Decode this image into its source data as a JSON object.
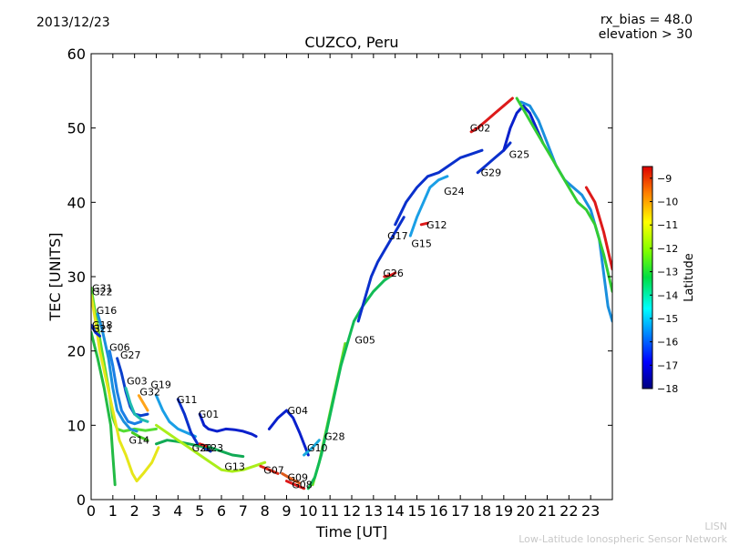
{
  "header": {
    "date": "2013/12/23",
    "rx_bias": "rx_bias = 48.0",
    "elevation": "elevation > 30"
  },
  "footer": {
    "org_short": "LISN",
    "org_long": "Low-Latitude Ionospheric Sensor Network"
  },
  "chart_data": {
    "type": "scatter",
    "title": "CUZCO, Peru",
    "xlabel": "Time [UT]",
    "ylabel": "TEC [UNITS]",
    "xlim": [
      0,
      24
    ],
    "ylim": [
      0,
      60
    ],
    "xticks": [
      "0",
      "1",
      "2",
      "3",
      "4",
      "5",
      "6",
      "7",
      "8",
      "9",
      "10",
      "11",
      "12",
      "13",
      "14",
      "15",
      "16",
      "17",
      "18",
      "19",
      "20",
      "21",
      "22",
      "23"
    ],
    "yticks": [
      "0",
      "10",
      "20",
      "30",
      "40",
      "50",
      "60"
    ],
    "colorbar": {
      "label": "Latitude",
      "range": [
        -18,
        -8.5
      ],
      "ticks": [
        "−9",
        "−10",
        "−11",
        "−12",
        "−13",
        "−14",
        "−15",
        "−16",
        "−17",
        "−18"
      ],
      "colormap": "jet"
    },
    "grid": false,
    "series": [
      {
        "name": "G31",
        "label_at": [
          0.0,
          28.5
        ],
        "color": "#55dd33",
        "points": [
          [
            0.0,
            28.5
          ],
          [
            0.2,
            25
          ],
          [
            0.5,
            20
          ],
          [
            0.8,
            15
          ],
          [
            1.0,
            11
          ],
          [
            1.2,
            9.5
          ],
          [
            1.5,
            9.2
          ],
          [
            2.0,
            9.5
          ],
          [
            2.5,
            9.3
          ],
          [
            3.0,
            9.5
          ]
        ]
      },
      {
        "name": "G22",
        "label_at": [
          0.0,
          28.0
        ],
        "color": "#e6e61a",
        "points": [
          [
            0.0,
            27.5
          ],
          [
            0.2,
            24
          ],
          [
            0.4,
            20
          ],
          [
            0.7,
            16
          ],
          [
            1.0,
            12
          ],
          [
            1.3,
            8
          ],
          [
            1.6,
            6
          ],
          [
            1.9,
            3.5
          ],
          [
            2.1,
            2.5
          ],
          [
            2.4,
            3.5
          ],
          [
            2.8,
            5
          ],
          [
            3.1,
            7
          ]
        ]
      },
      {
        "name": "G16",
        "label_at": [
          0.2,
          25.5
        ],
        "color": "#1a8fdd",
        "points": [
          [
            0.3,
            25
          ],
          [
            0.5,
            23
          ],
          [
            0.8,
            19
          ],
          [
            1.0,
            15
          ],
          [
            1.2,
            12
          ],
          [
            1.5,
            10.5
          ],
          [
            1.8,
            9.5
          ],
          [
            2.1,
            9.2
          ]
        ]
      },
      {
        "name": "G18",
        "label_at": [
          0.0,
          23.5
        ],
        "color": "#0a2acc",
        "points": [
          [
            0.0,
            23.5
          ],
          [
            0.2,
            22.5
          ],
          [
            0.4,
            22.0
          ]
        ]
      },
      {
        "name": "G21",
        "label_at": [
          0.0,
          23.0
        ],
        "color": "#22bb44",
        "points": [
          [
            0.0,
            22.5
          ],
          [
            0.3,
            19
          ],
          [
            0.6,
            15
          ],
          [
            0.9,
            10
          ],
          [
            1.0,
            6
          ],
          [
            1.1,
            2
          ]
        ]
      },
      {
        "name": "G06",
        "label_at": [
          0.8,
          20.5
        ],
        "color": "#1a7fe6",
        "points": [
          [
            0.85,
            20
          ],
          [
            1.0,
            18
          ],
          [
            1.2,
            14.5
          ],
          [
            1.4,
            12
          ],
          [
            1.7,
            10.5
          ],
          [
            2.0,
            10.2
          ],
          [
            2.3,
            10.5
          ]
        ]
      },
      {
        "name": "G27",
        "label_at": [
          1.3,
          19.5
        ],
        "color": "#0a40cc",
        "points": [
          [
            1.2,
            19
          ],
          [
            1.4,
            17
          ],
          [
            1.6,
            14.5
          ],
          [
            1.8,
            12.5
          ],
          [
            2.0,
            11.5
          ],
          [
            2.3,
            11.3
          ],
          [
            2.6,
            11.5
          ]
        ]
      },
      {
        "name": "G03",
        "label_at": [
          1.6,
          16.0
        ],
        "color": "#1fbcb0",
        "points": [
          [
            1.6,
            15
          ],
          [
            1.8,
            13
          ],
          [
            2.0,
            11.5
          ],
          [
            2.3,
            10.8
          ],
          [
            2.6,
            10.5
          ]
        ]
      },
      {
        "name": "G32",
        "label_at": [
          2.2,
          14.5
        ],
        "color": "#ffa41a",
        "points": [
          [
            2.2,
            14
          ],
          [
            2.4,
            13
          ],
          [
            2.6,
            12
          ]
        ]
      },
      {
        "name": "G19",
        "label_at": [
          2.7,
          15.5
        ],
        "color": "#1a9fe6",
        "points": [
          [
            3.0,
            14
          ],
          [
            3.3,
            12
          ],
          [
            3.6,
            10.5
          ],
          [
            4.0,
            9.5
          ],
          [
            4.4,
            9
          ],
          [
            4.8,
            8.5
          ]
        ]
      },
      {
        "name": "G14",
        "label_at": [
          1.7,
          8.0
        ],
        "color": "#44cc22",
        "points": [
          [
            1.9,
            9
          ],
          [
            2.2,
            8.5
          ],
          [
            2.6,
            8
          ]
        ]
      },
      {
        "name": "G11",
        "label_at": [
          3.9,
          13.5
        ],
        "color": "#0a30cc",
        "points": [
          [
            4.0,
            13.5
          ],
          [
            4.3,
            11.5
          ],
          [
            4.6,
            9
          ],
          [
            4.9,
            7.5
          ],
          [
            5.2,
            7
          ],
          [
            5.5,
            6.5
          ]
        ]
      },
      {
        "name": "G01",
        "label_at": [
          4.9,
          11.5
        ],
        "color": "#0a20cc",
        "points": [
          [
            5.0,
            11.5
          ],
          [
            5.2,
            10
          ],
          [
            5.4,
            9.5
          ],
          [
            5.8,
            9.2
          ],
          [
            6.2,
            9.5
          ],
          [
            6.6,
            9.4
          ],
          [
            7.0,
            9.2
          ],
          [
            7.4,
            8.8
          ],
          [
            7.6,
            8.5
          ]
        ]
      },
      {
        "name": "G20",
        "label_at": [
          4.6,
          7.0
        ],
        "color": "#11aa55",
        "points": [
          [
            3.0,
            7.5
          ],
          [
            3.5,
            8
          ],
          [
            4.0,
            7.8
          ],
          [
            4.5,
            7.5
          ],
          [
            5.0,
            7.2
          ],
          [
            5.5,
            7
          ],
          [
            6.0,
            6.5
          ],
          [
            6.5,
            6
          ],
          [
            7.0,
            5.8
          ]
        ]
      },
      {
        "name": "G23",
        "label_at": [
          5.1,
          7.0
        ],
        "color": "#dd1a1a",
        "points": [
          [
            5.0,
            7.5
          ],
          [
            5.3,
            7.2
          ]
        ]
      },
      {
        "name": "G13",
        "label_at": [
          6.1,
          4.5
        ],
        "color": "#aaee1a",
        "points": [
          [
            3.0,
            10
          ],
          [
            3.5,
            9
          ],
          [
            4.0,
            8
          ],
          [
            4.5,
            7
          ],
          [
            5.0,
            6
          ],
          [
            5.5,
            5
          ],
          [
            6.0,
            4
          ],
          [
            6.5,
            3.8
          ],
          [
            7.0,
            4
          ],
          [
            7.5,
            4.5
          ],
          [
            8.0,
            5
          ]
        ]
      },
      {
        "name": "G07",
        "label_at": [
          7.9,
          4.0
        ],
        "color": "#dd2a1a",
        "points": [
          [
            7.8,
            4.5
          ],
          [
            8.2,
            4
          ],
          [
            8.6,
            3.5
          ]
        ]
      },
      {
        "name": "G04",
        "label_at": [
          9.0,
          12.0
        ],
        "color": "#0a20cc",
        "points": [
          [
            8.2,
            9.5
          ],
          [
            8.6,
            11
          ],
          [
            9.0,
            12
          ],
          [
            9.3,
            11
          ],
          [
            9.6,
            9
          ],
          [
            10.0,
            6
          ]
        ]
      },
      {
        "name": "G09",
        "label_at": [
          9.0,
          3.0
        ],
        "color": "#dd5a1a",
        "points": [
          [
            8.8,
            3.5
          ],
          [
            9.2,
            2.8
          ],
          [
            9.6,
            2.2
          ]
        ]
      },
      {
        "name": "G08",
        "label_at": [
          9.2,
          2.0
        ],
        "color": "#dd1a1a",
        "points": [
          [
            9.0,
            2.5
          ],
          [
            9.4,
            2
          ],
          [
            9.8,
            1.5
          ]
        ]
      },
      {
        "name": "G10",
        "label_at": [
          9.9,
          7.0
        ],
        "color": "#1aaadd",
        "points": [
          [
            9.8,
            6
          ],
          [
            10.2,
            7
          ],
          [
            10.5,
            8
          ]
        ]
      },
      {
        "name": "G28",
        "label_at": [
          10.7,
          8.5
        ],
        "color": "#66dd22",
        "points": [
          [
            10.2,
            2
          ],
          [
            10.5,
            5
          ],
          [
            10.8,
            9
          ],
          [
            11.1,
            13
          ],
          [
            11.4,
            17
          ],
          [
            11.7,
            21
          ]
        ]
      },
      {
        "name": "G05",
        "label_at": [
          12.1,
          21.5
        ],
        "color": "#11bb55",
        "points": [
          [
            10.0,
            1.5
          ],
          [
            10.3,
            3
          ],
          [
            10.6,
            6
          ],
          [
            10.9,
            10
          ],
          [
            11.2,
            14
          ],
          [
            11.5,
            18
          ],
          [
            11.8,
            21
          ],
          [
            12.1,
            24
          ],
          [
            12.5,
            26
          ],
          [
            13.0,
            28
          ],
          [
            13.5,
            29.5
          ],
          [
            14.0,
            30.5
          ]
        ]
      },
      {
        "name": "G26",
        "label_at": [
          13.4,
          30.5
        ],
        "color": "#dd1a1a",
        "points": [
          [
            13.5,
            30
          ],
          [
            13.8,
            30.2
          ],
          [
            14.0,
            30.5
          ]
        ]
      },
      {
        "name": "G17",
        "label_at": [
          13.6,
          35.5
        ],
        "color": "#0a30cc",
        "points": [
          [
            12.3,
            24
          ],
          [
            12.6,
            27
          ],
          [
            12.9,
            30
          ],
          [
            13.2,
            32
          ],
          [
            13.5,
            33.5
          ],
          [
            13.8,
            35
          ],
          [
            14.1,
            36.5
          ],
          [
            14.4,
            38
          ]
        ]
      },
      {
        "name": "G15",
        "label_at": [
          14.7,
          34.5
        ],
        "color": "#1a9fe6",
        "points": [
          [
            14.7,
            35.5
          ],
          [
            15.0,
            38
          ],
          [
            15.3,
            40
          ],
          [
            15.6,
            42
          ],
          [
            16.0,
            43
          ],
          [
            16.4,
            43.5
          ]
        ]
      },
      {
        "name": "G12",
        "label_at": [
          15.4,
          37.0
        ],
        "color": "#dd1a1a",
        "points": [
          [
            15.2,
            37
          ],
          [
            15.5,
            37.2
          ]
        ]
      },
      {
        "name": "G24",
        "label_at": [
          16.2,
          41.5
        ],
        "color": "#0a30cc",
        "points": [
          [
            14.0,
            37
          ],
          [
            14.5,
            40
          ],
          [
            15.0,
            42
          ],
          [
            15.5,
            43.5
          ],
          [
            16.0,
            44
          ],
          [
            16.5,
            45
          ],
          [
            17.0,
            46
          ],
          [
            17.5,
            46.5
          ],
          [
            18.0,
            47
          ]
        ]
      },
      {
        "name": "G02",
        "label_at": [
          17.4,
          50.0
        ],
        "color": "#dd1a1a",
        "points": [
          [
            17.5,
            49.5
          ],
          [
            17.8,
            50
          ],
          [
            18.2,
            51
          ],
          [
            18.6,
            52
          ],
          [
            19.0,
            53
          ],
          [
            19.4,
            54
          ]
        ]
      },
      {
        "name": "G29",
        "label_at": [
          17.9,
          44.0
        ],
        "color": "#0a30cc",
        "points": [
          [
            17.8,
            44
          ],
          [
            18.2,
            45
          ],
          [
            18.6,
            46
          ],
          [
            19.0,
            47
          ],
          [
            19.3,
            48
          ]
        ]
      },
      {
        "name": "G25",
        "label_at": [
          19.2,
          46.5
        ],
        "color": "#0a20cc",
        "points": [
          [
            19.0,
            47
          ],
          [
            19.3,
            50
          ],
          [
            19.6,
            52
          ],
          [
            19.9,
            53
          ],
          [
            20.2,
            52
          ],
          [
            20.5,
            50
          ],
          [
            20.8,
            48
          ]
        ]
      },
      {
        "name": "",
        "label_at": null,
        "color": "#1a8fdd",
        "points": [
          [
            19.8,
            53.5
          ],
          [
            20.2,
            53
          ],
          [
            20.6,
            51
          ],
          [
            21.0,
            48
          ],
          [
            21.4,
            45
          ],
          [
            21.8,
            43
          ],
          [
            22.2,
            42
          ],
          [
            22.6,
            41
          ],
          [
            23.0,
            39
          ],
          [
            23.4,
            35
          ],
          [
            23.8,
            26
          ],
          [
            24.0,
            24
          ]
        ]
      },
      {
        "name": "",
        "label_at": null,
        "color": "#33cc33",
        "points": [
          [
            19.6,
            54
          ],
          [
            20.0,
            52
          ],
          [
            20.4,
            50
          ],
          [
            20.8,
            48
          ],
          [
            21.2,
            46
          ],
          [
            21.6,
            44
          ],
          [
            22.0,
            42
          ],
          [
            22.4,
            40
          ],
          [
            22.8,
            39
          ],
          [
            23.2,
            37
          ],
          [
            23.6,
            33
          ],
          [
            24.0,
            28
          ]
        ]
      },
      {
        "name": "",
        "label_at": null,
        "color": "#dd1a1a",
        "points": [
          [
            22.8,
            42
          ],
          [
            23.2,
            40
          ],
          [
            23.6,
            36
          ],
          [
            24.0,
            31
          ]
        ]
      }
    ]
  }
}
